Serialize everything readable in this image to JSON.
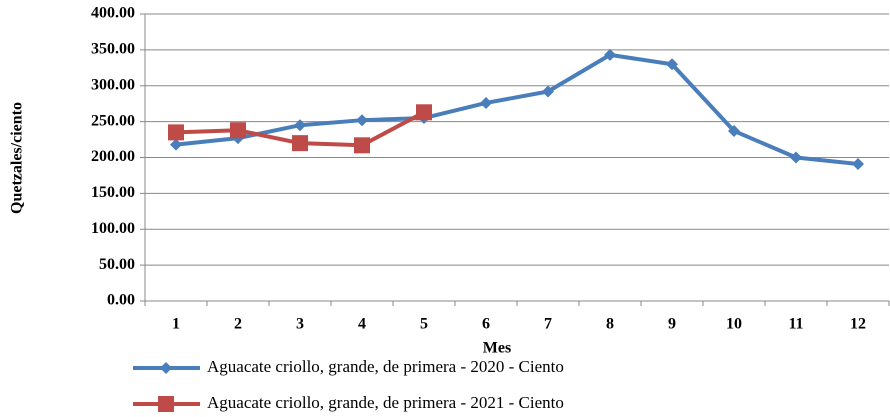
{
  "chart_data": {
    "type": "line",
    "x_label": "Mes",
    "y_label": "Quetzales/ciento",
    "categories": [
      "1",
      "2",
      "3",
      "4",
      "5",
      "6",
      "7",
      "8",
      "9",
      "10",
      "11",
      "12"
    ],
    "series": [
      {
        "name": "Aguacate criollo, grande, de primera - 2020 - Ciento",
        "color": "#4a7ebb",
        "marker": "diamond",
        "values": [
          218,
          227,
          245,
          252,
          255,
          276,
          292,
          343,
          330,
          237,
          200,
          191
        ]
      },
      {
        "name": "Aguacate criollo, grande, de primera - 2021 - Ciento",
        "color": "#be4b48",
        "marker": "square",
        "values": [
          235,
          238,
          220,
          217,
          263,
          null,
          null,
          null,
          null,
          null,
          null,
          null
        ]
      }
    ],
    "ylim": [
      0,
      400
    ],
    "yticks": [
      {
        "value": 0,
        "label": "0.00"
      },
      {
        "value": 50,
        "label": "50.00"
      },
      {
        "value": 100,
        "label": "100.00"
      },
      {
        "value": 150,
        "label": "150.00"
      },
      {
        "value": 200,
        "label": "200.00"
      },
      {
        "value": 250,
        "label": "250.00"
      },
      {
        "value": 300,
        "label": "300.00"
      },
      {
        "value": 350,
        "label": "350.00"
      },
      {
        "value": 400,
        "label": "400.00"
      }
    ],
    "grid": true,
    "legend": "bottom"
  }
}
